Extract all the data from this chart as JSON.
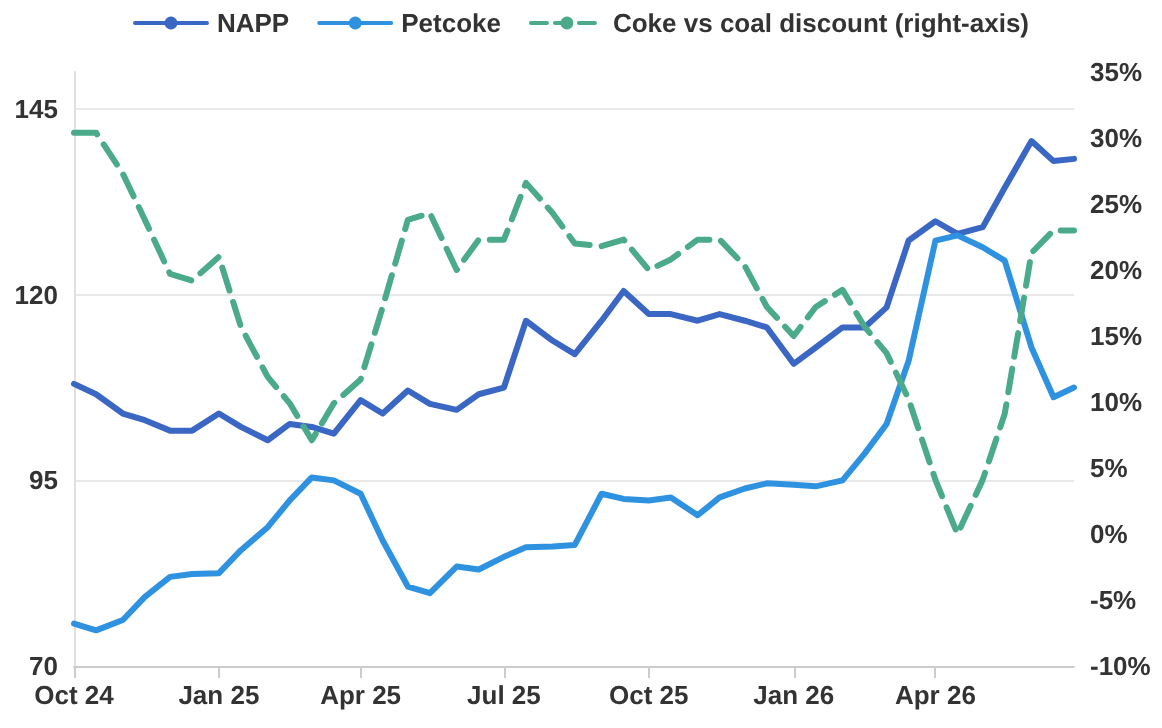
{
  "chart_data": {
    "type": "line",
    "x": [
      "2024-10-01",
      "2024-10-15",
      "2024-11-01",
      "2024-11-15",
      "2024-12-01",
      "2024-12-15",
      "2025-01-01",
      "2025-01-15",
      "2025-02-01",
      "2025-02-15",
      "2025-03-01",
      "2025-03-15",
      "2025-04-01",
      "2025-04-15",
      "2025-05-01",
      "2025-05-15",
      "2025-06-01",
      "2025-06-15",
      "2025-07-01",
      "2025-07-15",
      "2025-08-01",
      "2025-08-15",
      "2025-09-01",
      "2025-09-15",
      "2025-10-01",
      "2025-10-15",
      "2025-11-01",
      "2025-11-15",
      "2025-12-01",
      "2025-12-15",
      "2026-01-01",
      "2026-01-15",
      "2026-02-01",
      "2026-02-15",
      "2026-03-01",
      "2026-03-15",
      "2026-04-01",
      "2026-04-15",
      "2026-05-01",
      "2026-05-15",
      "2026-06-01",
      "2026-06-15",
      "2026-06-28"
    ],
    "series": [
      {
        "name": "NAPP",
        "color": "#3a66c4",
        "values": [
          108,
          106.6,
          104,
          103.1,
          101.7,
          101.7,
          104,
          102.2,
          100.4,
          102.6,
          102.2,
          101.3,
          105.8,
          104,
          107.1,
          105.3,
          104.5,
          106.6,
          107.5,
          116.5,
          113.8,
          112,
          116.5,
          120.5,
          117.4,
          117.4,
          116.5,
          117.4,
          116.5,
          115.6,
          110.7,
          112.9,
          115.6,
          115.6,
          118.3,
          127.3,
          129.9,
          128.2,
          129.1,
          134.4,
          140.7,
          138,
          138.3
        ]
      },
      {
        "name": "Petcoke",
        "color": "#2f92e0",
        "values": [
          75.7,
          74.8,
          76.2,
          79.3,
          82,
          82.4,
          82.5,
          85.6,
          88.7,
          92.3,
          95.4,
          95,
          93.2,
          86.9,
          80.7,
          79.8,
          83.4,
          83,
          84.7,
          86,
          86.1,
          86.3,
          93.2,
          92.5,
          92.3,
          92.7,
          90.3,
          92.7,
          93.9,
          94.6,
          94.4,
          94.2,
          95,
          98.6,
          102.6,
          111.1,
          127.3,
          128,
          126.4,
          124.6,
          112.9,
          106.2,
          107.5
        ]
      },
      {
        "name": "Coke vs coal discount (right-axis)",
        "color": "#4aaa8a",
        "axis": "y2",
        "line_style": "dashed",
        "values": [
          30.4,
          30.4,
          27.3,
          23.8,
          19.7,
          19.2,
          21,
          15.7,
          11.9,
          9.9,
          7.1,
          9.9,
          11.7,
          17.2,
          23.8,
          24.3,
          20,
          22.3,
          22.3,
          26.6,
          24.3,
          22,
          21.8,
          22.3,
          20,
          20.8,
          22.3,
          22.3,
          20.3,
          17.2,
          15,
          17.2,
          18.5,
          15.7,
          13.7,
          10.2,
          4.1,
          0,
          4.1,
          9.1,
          21.3,
          23,
          23
        ]
      }
    ],
    "xlim": [
      "2024-10-01",
      "2026-06-28"
    ],
    "xticks": [
      {
        "value": "2024-10-01",
        "label": "Oct 24"
      },
      {
        "value": "2025-01-01",
        "label": "Jan 25"
      },
      {
        "value": "2025-04-01",
        "label": "Apr 25"
      },
      {
        "value": "2025-07-01",
        "label": "Jul 25"
      },
      {
        "value": "2025-10-01",
        "label": "Oct 25"
      },
      {
        "value": "2026-01-01",
        "label": "Jan 26"
      },
      {
        "value": "2026-04-01",
        "label": "Apr 26"
      }
    ],
    "ylim": [
      70,
      150
    ],
    "yticks": [
      70,
      95,
      120,
      145
    ],
    "y2lim": [
      -10,
      35
    ],
    "y2ticks": [
      {
        "value": -10,
        "label": "-10%"
      },
      {
        "value": -5,
        "label": "-5%"
      },
      {
        "value": 0,
        "label": "0%"
      },
      {
        "value": 5,
        "label": "5%"
      },
      {
        "value": 10,
        "label": "10%"
      },
      {
        "value": 15,
        "label": "15%"
      },
      {
        "value": 20,
        "label": "20%"
      },
      {
        "value": 25,
        "label": "25%"
      },
      {
        "value": 30,
        "label": "30%"
      },
      {
        "value": 35,
        "label": "35%"
      }
    ],
    "grid": "y",
    "legend": "top",
    "marker": "none",
    "line_style": "solid"
  }
}
